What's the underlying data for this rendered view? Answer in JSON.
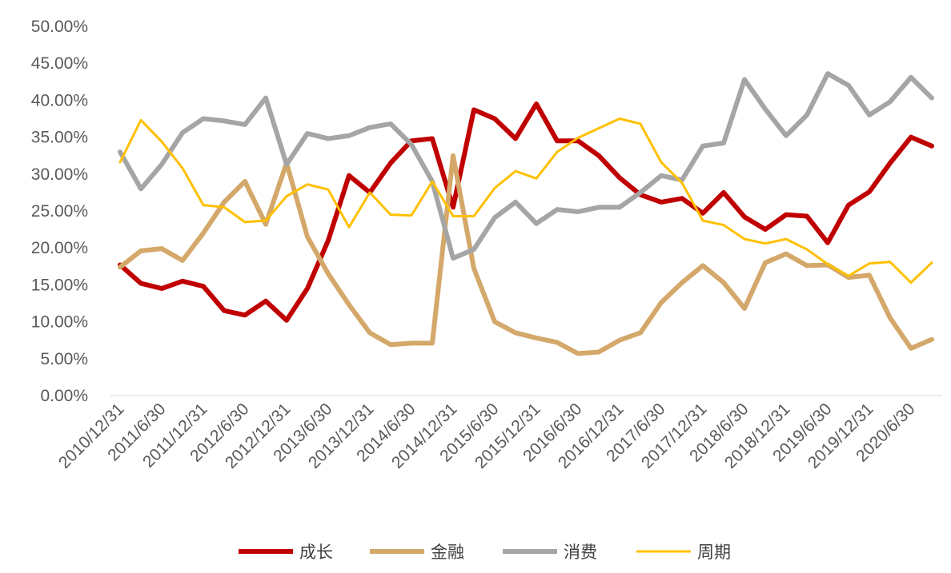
{
  "chart_data": {
    "type": "line",
    "title": "",
    "xlabel": "",
    "ylabel": "",
    "ylim": [
      0,
      50
    ],
    "y_tick_step": 5,
    "y_tick_format": "percent-2dp",
    "grid": false,
    "legend_position": "bottom",
    "categories": [
      "2010/12/31",
      "2011/3/31",
      "2011/6/30",
      "2011/9/30",
      "2011/12/31",
      "2012/3/31",
      "2012/6/30",
      "2012/9/30",
      "2012/12/31",
      "2013/3/31",
      "2013/6/30",
      "2013/9/30",
      "2013/12/31",
      "2014/3/31",
      "2014/6/30",
      "2014/9/30",
      "2014/12/31",
      "2015/3/31",
      "2015/6/30",
      "2015/9/30",
      "2015/12/31",
      "2016/3/31",
      "2016/6/30",
      "2016/9/30",
      "2016/12/31",
      "2017/3/31",
      "2017/6/30",
      "2017/9/30",
      "2017/12/31",
      "2018/3/31",
      "2018/6/30",
      "2018/9/30",
      "2018/12/31",
      "2019/3/31",
      "2019/6/30",
      "2019/9/30",
      "2019/12/31",
      "2020/3/31",
      "2020/6/30",
      "2020/9/30"
    ],
    "x_tick_labels_every": 2,
    "series": [
      {
        "name": "成长",
        "color": "#C00000",
        "values": [
          17.7,
          15.2,
          14.5,
          15.5,
          14.8,
          11.5,
          10.9,
          12.8,
          10.2,
          14.5,
          21.0,
          29.8,
          27.5,
          31.5,
          34.5,
          34.8,
          25.5,
          38.7,
          37.5,
          34.8,
          39.5,
          34.5,
          34.5,
          32.5,
          29.5,
          27.2,
          26.2,
          26.7,
          24.7,
          27.5,
          24.2,
          22.5,
          24.5,
          24.3,
          20.7,
          25.8,
          27.6,
          31.5,
          35.0,
          33.8
        ]
      },
      {
        "name": "金融",
        "color": "#D4A86A",
        "values": [
          17.4,
          19.6,
          19.9,
          18.3,
          22.0,
          26.2,
          29.0,
          23.2,
          31.5,
          21.5,
          16.5,
          12.3,
          8.5,
          6.9,
          7.1,
          7.1,
          32.5,
          17.2,
          10.0,
          8.5,
          7.8,
          7.2,
          5.7,
          5.9,
          7.5,
          8.5,
          12.6,
          15.3,
          17.6,
          15.3,
          11.8,
          18.0,
          19.2,
          17.6,
          17.7,
          16.0,
          16.3,
          10.5,
          6.4,
          7.6
        ]
      },
      {
        "name": "消费",
        "color": "#A5A5A5",
        "values": [
          33.0,
          28.0,
          31.3,
          35.6,
          37.5,
          37.2,
          36.7,
          40.3,
          31.3,
          35.5,
          34.8,
          35.2,
          36.3,
          36.8,
          34.0,
          29.0,
          18.6,
          19.8,
          24.1,
          26.2,
          23.3,
          25.2,
          24.9,
          25.5,
          25.5,
          27.5,
          29.8,
          29.2,
          33.8,
          34.2,
          42.8,
          38.8,
          35.2,
          38.0,
          43.6,
          42.0,
          38.0,
          39.8,
          43.1,
          40.3
        ]
      },
      {
        "name": "周期",
        "color": "#FFC000",
        "values": [
          31.6,
          37.3,
          34.4,
          30.8,
          25.8,
          25.5,
          23.5,
          23.7,
          27.0,
          28.6,
          27.9,
          22.8,
          27.5,
          24.5,
          24.4,
          29.0,
          24.3,
          24.3,
          28.1,
          30.4,
          29.4,
          33.0,
          34.9,
          36.2,
          37.5,
          36.8,
          31.6,
          28.8,
          23.7,
          23.1,
          21.2,
          20.6,
          21.2,
          19.8,
          17.8,
          16.2,
          17.9,
          18.1,
          15.3,
          18.0
        ]
      }
    ]
  }
}
